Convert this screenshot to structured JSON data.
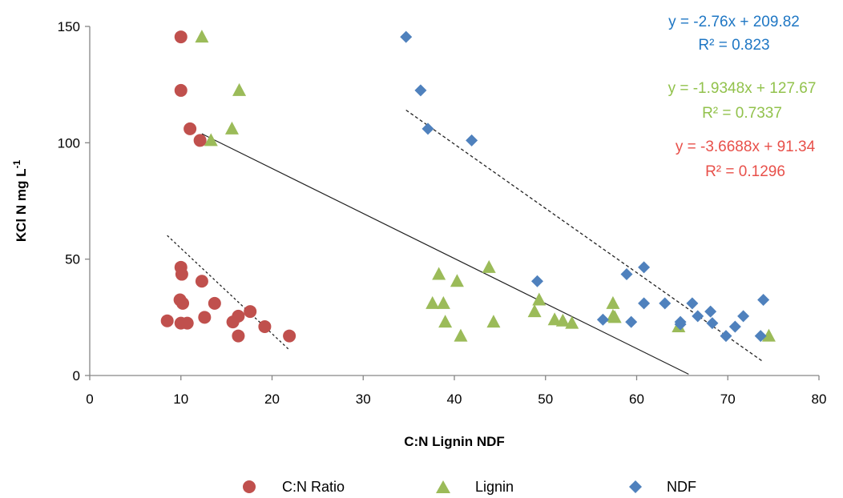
{
  "chart_data": {
    "type": "scatter",
    "xlabel": "C:N Lignin NDF",
    "ylabel": "KCl N mg L",
    "ylabel_superscript": "-1",
    "xlim": [
      0,
      80
    ],
    "ylim": [
      0,
      150
    ],
    "xticks": [
      0,
      10,
      20,
      30,
      40,
      50,
      60,
      70,
      80
    ],
    "yticks": [
      0,
      50,
      100,
      150
    ],
    "grid": false,
    "legend_position": "bottom",
    "series": [
      {
        "name": "C:N Ratio",
        "marker": "circle",
        "color": "#C0504D",
        "points": [
          [
            10.0,
            145.5
          ],
          [
            10.0,
            122.5
          ],
          [
            11.0,
            106.0
          ],
          [
            12.1,
            101.0
          ],
          [
            10.0,
            46.5
          ],
          [
            10.1,
            43.5
          ],
          [
            12.3,
            40.5
          ],
          [
            9.9,
            32.5
          ],
          [
            10.2,
            31.0
          ],
          [
            13.7,
            31.0
          ],
          [
            17.6,
            27.5
          ],
          [
            16.3,
            25.5
          ],
          [
            12.6,
            25.0
          ],
          [
            8.5,
            23.5
          ],
          [
            10.0,
            22.5
          ],
          [
            10.7,
            22.5
          ],
          [
            15.7,
            23.0
          ],
          [
            19.2,
            21.0
          ],
          [
            16.3,
            17.0
          ],
          [
            21.9,
            17.0
          ]
        ],
        "trendline": {
          "x": [
            8.5,
            21.9
          ],
          "slope": -3.6688,
          "intercept": 91.34
        },
        "equation": "y = -3.6688x + 91.34",
        "r2": "R² = 0.1296"
      },
      {
        "name": "Lignin",
        "marker": "triangle",
        "color": "#9BBB59",
        "points": [
          [
            12.3,
            145.5
          ],
          [
            16.4,
            122.5
          ],
          [
            15.6,
            106.0
          ],
          [
            13.3,
            101.0
          ],
          [
            43.8,
            46.5
          ],
          [
            38.3,
            43.5
          ],
          [
            40.3,
            40.5
          ],
          [
            37.6,
            31.0
          ],
          [
            38.8,
            31.0
          ],
          [
            49.3,
            32.5
          ],
          [
            57.4,
            31.0
          ],
          [
            48.8,
            27.5
          ],
          [
            57.4,
            25.5
          ],
          [
            57.6,
            25.0
          ],
          [
            51.0,
            24.0
          ],
          [
            51.9,
            23.5
          ],
          [
            39.0,
            23.0
          ],
          [
            44.3,
            23.0
          ],
          [
            52.9,
            22.5
          ],
          [
            64.6,
            21.0
          ],
          [
            40.7,
            17.0
          ],
          [
            74.5,
            17.0
          ]
        ],
        "trendline": {
          "x": [
            12.3,
            65.7
          ],
          "slope": -1.9348,
          "intercept": 127.67
        },
        "equation": "y = -1.9348x + 127.67",
        "r2": "R² = 0.7337"
      },
      {
        "name": "NDF",
        "marker": "diamond",
        "color": "#4F81BD",
        "points": [
          [
            34.7,
            145.5
          ],
          [
            36.3,
            122.5
          ],
          [
            37.1,
            106.0
          ],
          [
            41.9,
            101.0
          ],
          [
            49.1,
            40.5
          ],
          [
            60.8,
            46.5
          ],
          [
            58.9,
            43.5
          ],
          [
            60.8,
            31.0
          ],
          [
            63.1,
            31.0
          ],
          [
            66.1,
            31.0
          ],
          [
            73.9,
            32.5
          ],
          [
            68.1,
            27.5
          ],
          [
            66.7,
            25.5
          ],
          [
            71.7,
            25.5
          ],
          [
            56.3,
            24.0
          ],
          [
            59.4,
            23.0
          ],
          [
            64.8,
            23.0
          ],
          [
            68.3,
            22.5
          ],
          [
            64.8,
            22.0
          ],
          [
            70.8,
            21.0
          ],
          [
            69.8,
            17.0
          ],
          [
            73.6,
            17.0
          ]
        ],
        "trendline": {
          "x": [
            34.7,
            73.9
          ],
          "slope": -2.76,
          "intercept": 209.82
        },
        "equation": "y = -2.76x + 209.82",
        "r2": "R² = 0.823"
      }
    ]
  }
}
